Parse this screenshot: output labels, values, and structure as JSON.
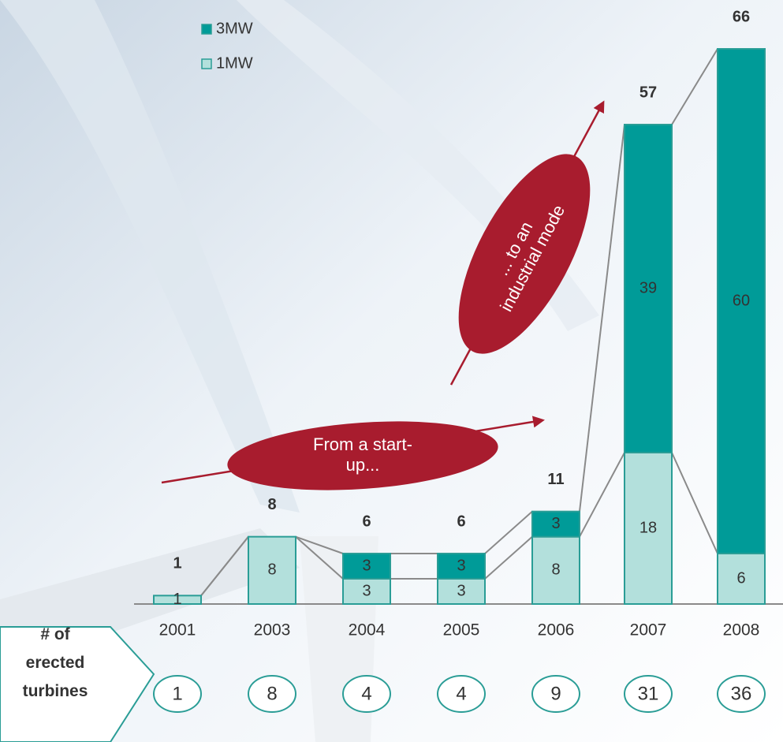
{
  "chart_data": {
    "type": "stacked_bar",
    "categories": [
      "2001",
      "2003",
      "2004",
      "2005",
      "2006",
      "2007",
      "2008"
    ],
    "series": [
      {
        "name": "1MW",
        "color": "#b3e0dc",
        "values": [
          1,
          8,
          3,
          3,
          8,
          18,
          6
        ]
      },
      {
        "name": "3MW",
        "color": "#009b98",
        "values": [
          null,
          null,
          3,
          3,
          3,
          39,
          60
        ]
      }
    ],
    "totals": [
      1,
      8,
      6,
      6,
      11,
      57,
      66
    ],
    "turbines_label": "# of erected turbines",
    "turbines": [
      1,
      8,
      4,
      4,
      9,
      31,
      36
    ],
    "annotations": [
      "From a start-up...",
      "... to an industrial mode"
    ]
  }
}
